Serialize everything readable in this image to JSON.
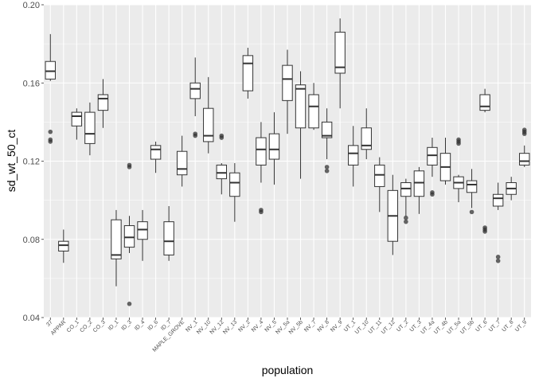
{
  "chart_data": {
    "type": "boxplot",
    "xlabel": "population",
    "ylabel": "sd_wt_50_ct",
    "ylim": [
      0.04,
      0.2
    ],
    "yticks": [
      0.04,
      0.08,
      0.12,
      0.16,
      0.2
    ],
    "ytick_labels": [
      "0.04",
      "0.08",
      "0.12",
      "0.16",
      "0.20"
    ],
    "grid": true,
    "colors": {
      "panel": "#ebebeb",
      "grid": "#ffffff",
      "box_fill": "#ffffff",
      "line": "#333333",
      "outlier": "#333333"
    },
    "categories": [
      "37",
      "APPAR",
      "CO_1",
      "CO_2",
      "CO_3",
      "ID_1",
      "ID_3",
      "ID_4",
      "ID_6",
      "ID_7",
      "MAPLE_GROVE",
      "NV_1",
      "NV_10",
      "NV_12",
      "NV_13",
      "NV_2",
      "NV_4",
      "NV_5",
      "NV_5a",
      "NV_5b",
      "NV_7",
      "NV_8",
      "NV_9",
      "UT_1",
      "UT_10",
      "UT_11",
      "UT_12",
      "UT_2",
      "UT_3",
      "UT_4a",
      "UT_4b",
      "UT_5a",
      "UT_5b",
      "UT_6",
      "UT_7",
      "UT_8",
      "UT_9"
    ],
    "boxes": [
      {
        "lower": 0.161,
        "q1": 0.162,
        "median": 0.166,
        "q3": 0.171,
        "upper": 0.185,
        "outliers": [
          0.135,
          0.131,
          0.13
        ]
      },
      {
        "lower": 0.068,
        "q1": 0.074,
        "median": 0.077,
        "q3": 0.079,
        "upper": 0.085,
        "outliers": []
      },
      {
        "lower": 0.131,
        "q1": 0.138,
        "median": 0.143,
        "q3": 0.145,
        "upper": 0.147,
        "outliers": []
      },
      {
        "lower": 0.123,
        "q1": 0.129,
        "median": 0.134,
        "q3": 0.145,
        "upper": 0.15,
        "outliers": []
      },
      {
        "lower": 0.137,
        "q1": 0.146,
        "median": 0.152,
        "q3": 0.154,
        "upper": 0.162,
        "outliers": []
      },
      {
        "lower": 0.056,
        "q1": 0.07,
        "median": 0.072,
        "q3": 0.09,
        "upper": 0.095,
        "outliers": []
      },
      {
        "lower": 0.073,
        "q1": 0.076,
        "median": 0.081,
        "q3": 0.087,
        "upper": 0.092,
        "outliers": [
          0.118,
          0.117,
          0.047
        ]
      },
      {
        "lower": 0.069,
        "q1": 0.08,
        "median": 0.085,
        "q3": 0.089,
        "upper": 0.095,
        "outliers": []
      },
      {
        "lower": 0.114,
        "q1": 0.121,
        "median": 0.126,
        "q3": 0.128,
        "upper": 0.13,
        "outliers": []
      },
      {
        "lower": 0.069,
        "q1": 0.072,
        "median": 0.079,
        "q3": 0.089,
        "upper": 0.097,
        "outliers": []
      },
      {
        "lower": 0.107,
        "q1": 0.113,
        "median": 0.116,
        "q3": 0.125,
        "upper": 0.133,
        "outliers": []
      },
      {
        "lower": 0.143,
        "q1": 0.152,
        "median": 0.157,
        "q3": 0.16,
        "upper": 0.173,
        "outliers": [
          0.134,
          0.133
        ]
      },
      {
        "lower": 0.124,
        "q1": 0.13,
        "median": 0.133,
        "q3": 0.147,
        "upper": 0.163,
        "outliers": []
      },
      {
        "lower": 0.103,
        "q1": 0.111,
        "median": 0.114,
        "q3": 0.118,
        "upper": 0.119,
        "outliers": [
          0.133,
          0.132
        ]
      },
      {
        "lower": 0.089,
        "q1": 0.102,
        "median": 0.109,
        "q3": 0.114,
        "upper": 0.119,
        "outliers": []
      },
      {
        "lower": 0.152,
        "q1": 0.156,
        "median": 0.17,
        "q3": 0.174,
        "upper": 0.178,
        "outliers": []
      },
      {
        "lower": 0.109,
        "q1": 0.118,
        "median": 0.126,
        "q3": 0.132,
        "upper": 0.14,
        "outliers": [
          0.095,
          0.094
        ]
      },
      {
        "lower": 0.108,
        "q1": 0.121,
        "median": 0.126,
        "q3": 0.134,
        "upper": 0.145,
        "outliers": []
      },
      {
        "lower": 0.134,
        "q1": 0.151,
        "median": 0.162,
        "q3": 0.169,
        "upper": 0.177,
        "outliers": []
      },
      {
        "lower": 0.111,
        "q1": 0.137,
        "median": 0.157,
        "q3": 0.159,
        "upper": 0.166,
        "outliers": []
      },
      {
        "lower": 0.136,
        "q1": 0.137,
        "median": 0.148,
        "q3": 0.154,
        "upper": 0.16,
        "outliers": []
      },
      {
        "lower": 0.121,
        "q1": 0.132,
        "median": 0.133,
        "q3": 0.14,
        "upper": 0.147,
        "outliers": [
          0.117,
          0.115
        ]
      },
      {
        "lower": 0.147,
        "q1": 0.165,
        "median": 0.168,
        "q3": 0.186,
        "upper": 0.193,
        "outliers": []
      },
      {
        "lower": 0.107,
        "q1": 0.118,
        "median": 0.124,
        "q3": 0.128,
        "upper": 0.138,
        "outliers": []
      },
      {
        "lower": 0.121,
        "q1": 0.126,
        "median": 0.128,
        "q3": 0.137,
        "upper": 0.147,
        "outliers": []
      },
      {
        "lower": 0.094,
        "q1": 0.107,
        "median": 0.113,
        "q3": 0.118,
        "upper": 0.122,
        "outliers": []
      },
      {
        "lower": 0.072,
        "q1": 0.079,
        "median": 0.092,
        "q3": 0.105,
        "upper": 0.113,
        "outliers": []
      },
      {
        "lower": 0.092,
        "q1": 0.102,
        "median": 0.106,
        "q3": 0.109,
        "upper": 0.111,
        "outliers": [
          0.091,
          0.089
        ]
      },
      {
        "lower": 0.093,
        "q1": 0.102,
        "median": 0.109,
        "q3": 0.115,
        "upper": 0.117,
        "outliers": []
      },
      {
        "lower": 0.112,
        "q1": 0.118,
        "median": 0.123,
        "q3": 0.127,
        "upper": 0.132,
        "outliers": [
          0.104,
          0.103
        ]
      },
      {
        "lower": 0.108,
        "q1": 0.11,
        "median": 0.117,
        "q3": 0.124,
        "upper": 0.132,
        "outliers": []
      },
      {
        "lower": 0.099,
        "q1": 0.106,
        "median": 0.109,
        "q3": 0.112,
        "upper": 0.113,
        "outliers": [
          0.131,
          0.13,
          0.129
        ]
      },
      {
        "lower": 0.096,
        "q1": 0.104,
        "median": 0.108,
        "q3": 0.11,
        "upper": 0.116,
        "outliers": [
          0.094
        ]
      },
      {
        "lower": 0.145,
        "q1": 0.146,
        "median": 0.148,
        "q3": 0.154,
        "upper": 0.157,
        "outliers": [
          0.086,
          0.085,
          0.084
        ]
      },
      {
        "lower": 0.095,
        "q1": 0.097,
        "median": 0.101,
        "q3": 0.103,
        "upper": 0.109,
        "outliers": [
          0.071,
          0.069
        ]
      },
      {
        "lower": 0.1,
        "q1": 0.103,
        "median": 0.106,
        "q3": 0.109,
        "upper": 0.112,
        "outliers": []
      },
      {
        "lower": 0.117,
        "q1": 0.118,
        "median": 0.12,
        "q3": 0.124,
        "upper": 0.128,
        "outliers": [
          0.136,
          0.135,
          0.134
        ]
      }
    ]
  }
}
